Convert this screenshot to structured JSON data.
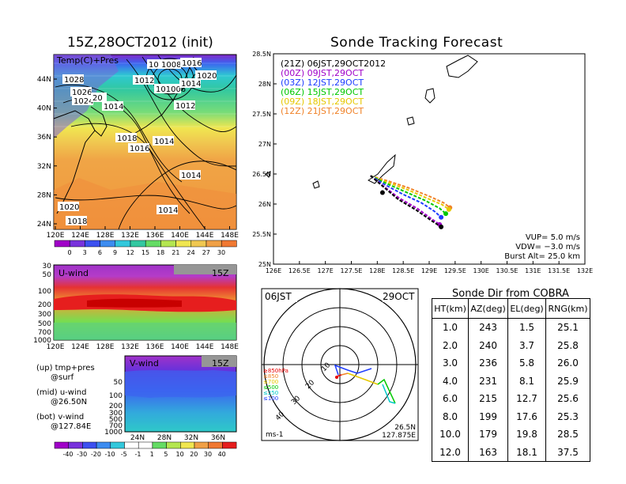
{
  "left": {
    "map_title": "15Z,28OCT2012 (init)",
    "map_label": "Temp(C)+Pres",
    "lat_ticks": [
      "44N",
      "40N",
      "36N",
      "32N",
      "28N",
      "24N"
    ],
    "lon_ticks": [
      "120E",
      "124E",
      "128E",
      "132E",
      "136E",
      "140E",
      "144E",
      "148E"
    ],
    "isobar_labels": [
      "1028",
      "1026",
      "1024",
      "1020",
      "1018",
      "1016",
      "1014",
      "1012",
      "1010",
      "1008",
      "1006",
      "1016",
      "1020",
      "1014",
      "1012",
      "1014",
      "1014",
      "1014",
      "1020",
      "1018"
    ],
    "temp_colorbar": [
      "0",
      "3",
      "6",
      "9",
      "12",
      "15",
      "18",
      "21",
      "24",
      "27",
      "30"
    ],
    "uwind_label": "U-wind",
    "uwind_time": "15Z",
    "uwind_yticks": [
      "30",
      "50",
      "100",
      "200",
      "300",
      "500",
      "700",
      "1000"
    ],
    "uwind_xticks": [
      "120E",
      "124E",
      "128E",
      "132E",
      "136E",
      "140E",
      "144E",
      "148E"
    ],
    "vwind_label": "V-wind",
    "vwind_time": "15Z",
    "vwind_yticks": [
      "50",
      "100",
      "200",
      "300",
      "500",
      "700",
      "1000"
    ],
    "vwind_xticks": [
      "24N",
      "28N",
      "32N",
      "36N"
    ],
    "wind_colorbar": [
      "-40",
      "-30",
      "-20",
      "-10",
      "-5",
      "-1",
      "1",
      "5",
      "10",
      "20",
      "30",
      "40"
    ],
    "legend": {
      "up": "(up) tmp+pres",
      "up2": "@surf",
      "mid": "(mid) u-wind",
      "mid2": "@26.50N",
      "bot": "(bot) v-wind",
      "bot2": "@127.84E"
    }
  },
  "chart_data": [
    {
      "type": "line",
      "title": "Sonde Tracking Forecast",
      "xticks": [
        "126E",
        "126.5E",
        "127E",
        "127.5E",
        "128E",
        "128.5E",
        "129E",
        "129.5E",
        "130E",
        "130.5E",
        "131E",
        "131.5E",
        "132E"
      ],
      "yticks": [
        "28.5N",
        "28N",
        "27.5N",
        "27N",
        "26.5N",
        "26N",
        "25.5N",
        "25N"
      ],
      "xlim": [
        126,
        132
      ],
      "ylim": [
        25,
        28.5
      ],
      "series": [
        {
          "name": "(21Z)  06JST,29OCT2012",
          "color": "#000000",
          "x": [
            127.87,
            128.1,
            128.4,
            128.75,
            129.05,
            129.23
          ],
          "y": [
            26.47,
            26.3,
            26.08,
            25.9,
            25.72,
            25.62
          ]
        },
        {
          "name": "(00Z)  09JST,29OCT",
          "color": "#a000c8",
          "x": [
            127.87,
            128.1,
            128.42,
            128.78,
            129.05,
            129.2
          ],
          "y": [
            26.47,
            26.31,
            26.1,
            25.92,
            25.75,
            25.66
          ]
        },
        {
          "name": "(03Z)  12JST,29OCT",
          "color": "#1e3cff",
          "x": [
            127.87,
            128.15,
            128.5,
            128.85,
            129.1,
            129.23
          ],
          "y": [
            26.47,
            26.32,
            26.16,
            26.02,
            25.88,
            25.78
          ]
        },
        {
          "name": "(06Z)  15JST,29OCT",
          "color": "#00c800",
          "x": [
            127.87,
            128.18,
            128.55,
            128.92,
            129.2,
            129.32
          ],
          "y": [
            26.47,
            26.34,
            26.2,
            26.06,
            25.93,
            25.84
          ]
        },
        {
          "name": "(09Z)  18JST,29OCT",
          "color": "#e6c800",
          "x": [
            127.87,
            128.2,
            128.58,
            128.95,
            129.25,
            129.38
          ],
          "y": [
            26.47,
            26.36,
            26.24,
            26.1,
            25.99,
            25.91
          ]
        },
        {
          "name": "(12Z)  21JST,29OCT",
          "color": "#f08228",
          "x": [
            127.87,
            128.22,
            128.6,
            129.0,
            129.28,
            129.4
          ],
          "y": [
            26.47,
            26.38,
            26.27,
            26.13,
            26.02,
            25.94
          ]
        }
      ],
      "info": {
        "vup": "VUP=  5.0  m/s",
        "vdw": "VDW= −3.0  m/s",
        "burst": "Burst Alt=  25.0  km"
      }
    },
    {
      "type": "polar",
      "time_left": "06JST",
      "date_right": "29OCT",
      "pos_lat": "26.5N",
      "pos_lon": "127.875E",
      "unit": "ms-1",
      "ring_labels": [
        "10",
        "20",
        "30",
        "40"
      ],
      "levels": [
        {
          "label": "≥850hPa",
          "color": "#e60000"
        },
        {
          "label": "≤850",
          "color": "#f08228"
        },
        {
          "label": "≤700",
          "color": "#e6c800"
        },
        {
          "label": "≤500",
          "color": "#00c800"
        },
        {
          "label": "≤250",
          "color": "#00c8c8"
        },
        {
          "label": "≤100",
          "color": "#1e3cff"
        }
      ]
    },
    {
      "type": "table",
      "title": "Sonde Dir from COBRA",
      "headers": [
        "HT(km)",
        "AZ(deg)",
        "EL(deg)",
        "RNG(km)"
      ],
      "rows": [
        [
          "1.0",
          "243",
          "1.5",
          "25.1"
        ],
        [
          "2.0",
          "240",
          "3.7",
          "25.8"
        ],
        [
          "3.0",
          "236",
          "5.8",
          "26.0"
        ],
        [
          "4.0",
          "231",
          "8.1",
          "25.9"
        ],
        [
          "6.0",
          "215",
          "12.7",
          "25.6"
        ],
        [
          "8.0",
          "199",
          "17.6",
          "25.3"
        ],
        [
          "10.0",
          "179",
          "19.8",
          "28.5"
        ],
        [
          "12.0",
          "163",
          "18.1",
          "37.5"
        ]
      ]
    }
  ]
}
